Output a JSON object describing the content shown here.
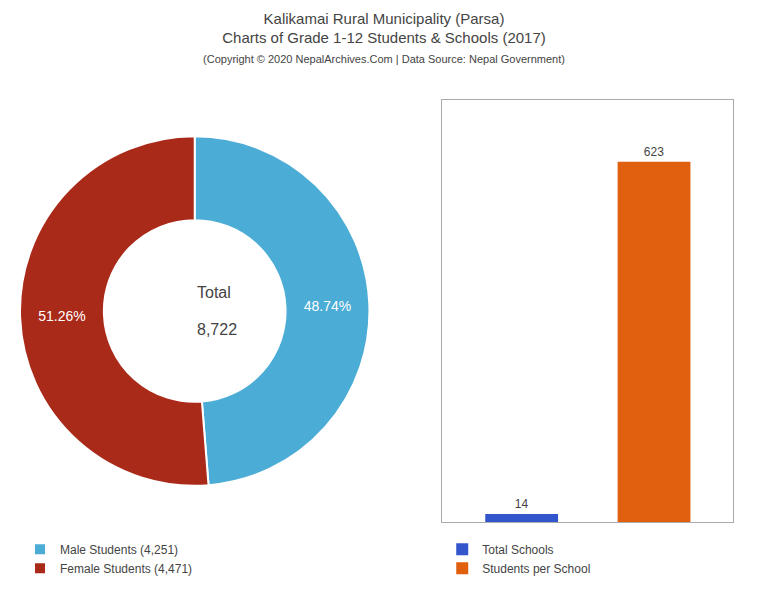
{
  "chart_data": [
    {
      "type": "pie",
      "title": "Kalikamai Rural Municipality (Parsa)\nCharts of Grade 1-12 Students & Schools (2017)",
      "subtitle": "(Copyright © 2020 NepalArchives.Com | Data Source: Nepal Government)",
      "categories": [
        "Male Students (4,251)",
        "Female Students (4,471)"
      ],
      "values": [
        48.74,
        51.26
      ],
      "value_labels": [
        "48.74%",
        "51.26%"
      ],
      "colors": [
        "#4bacd6",
        "#aa2a1a"
      ],
      "data_labels": true,
      "annotations": [
        "Total",
        "8,722"
      ],
      "legend": "lower left"
    },
    {
      "type": "bar",
      "categories": [
        null,
        null
      ],
      "series": [
        {
          "name": "Total Schools",
          "color": "#3355cc",
          "values": [
            14,
            null
          ]
        },
        {
          "name": "Students per School",
          "color": "#e06010",
          "values": [
            null,
            623
          ]
        }
      ],
      "ylim": [
        0,
        730
      ],
      "yticks": [],
      "grid": false,
      "data_labels": true,
      "tick_labels": false,
      "legend": "lower left"
    }
  ]
}
